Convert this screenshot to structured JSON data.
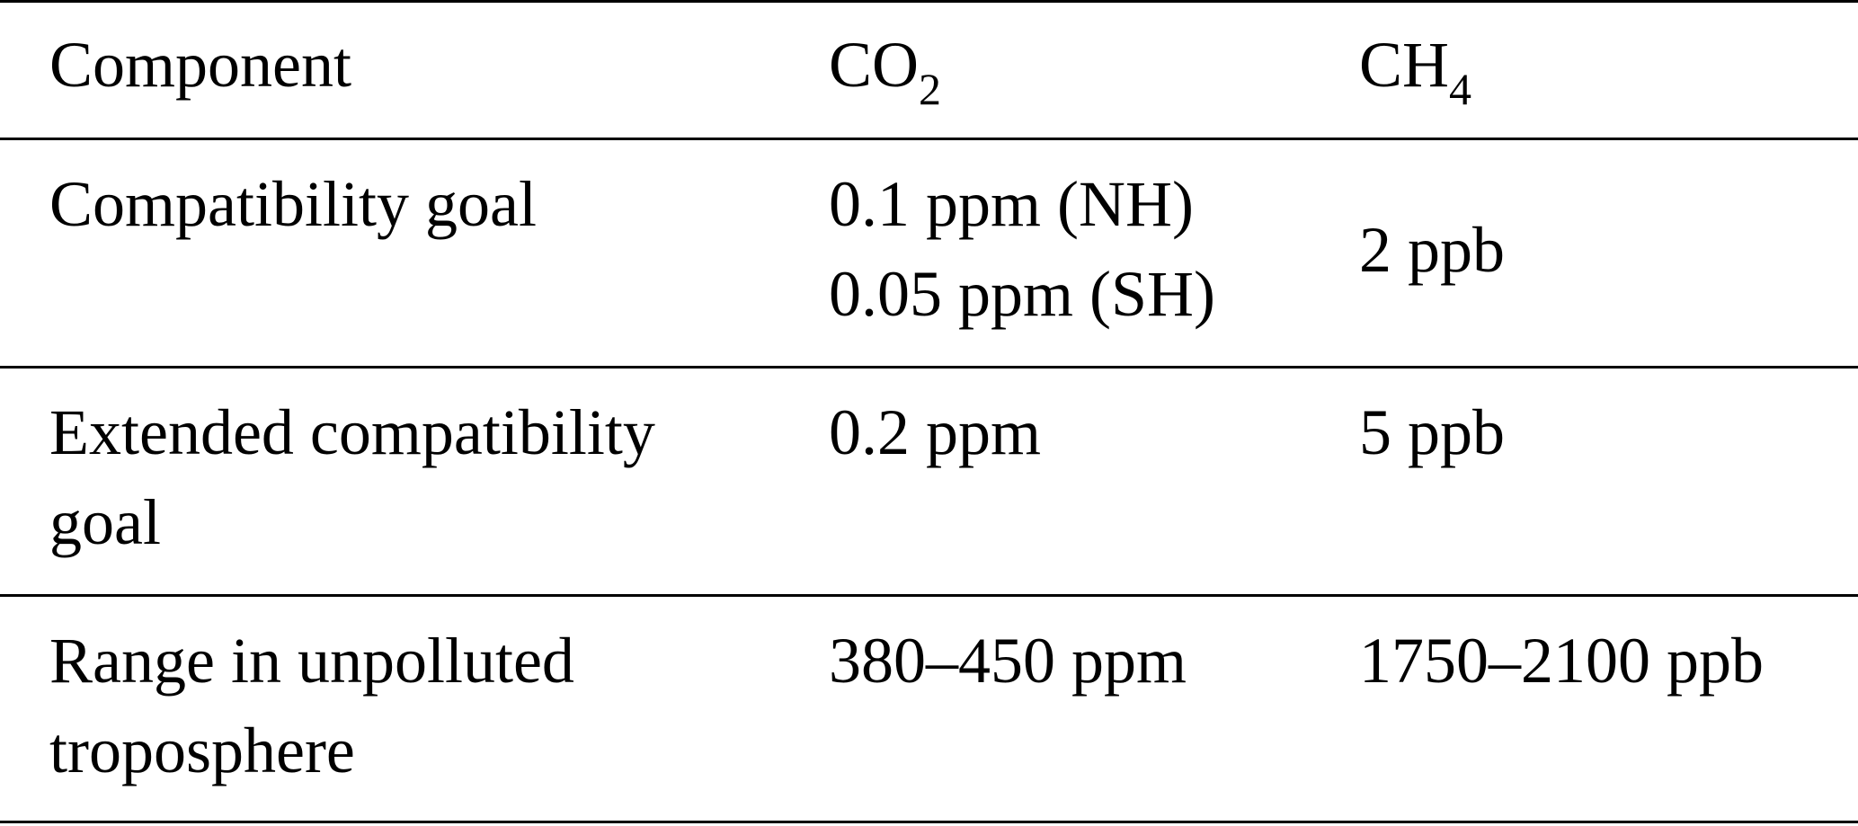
{
  "header": {
    "component": "Component",
    "co2": {
      "base": "CO",
      "sub": "2"
    },
    "ch4": {
      "base": "CH",
      "sub": "4"
    }
  },
  "rows": [
    {
      "component": [
        "Compatibility goal"
      ],
      "co2": [
        "0.1 ppm (NH)",
        "0.05 ppm (SH)"
      ],
      "ch4": [
        "2 ppb"
      ]
    },
    {
      "component": [
        "Extended compatibility",
        "goal"
      ],
      "co2": [
        "0.2 ppm"
      ],
      "ch4": [
        "5 ppb"
      ]
    },
    {
      "component": [
        "Range in unpolluted",
        "troposphere"
      ],
      "co2": [
        "380–450 ppm"
      ],
      "ch4": [
        "1750–2100 ppb"
      ]
    }
  ]
}
